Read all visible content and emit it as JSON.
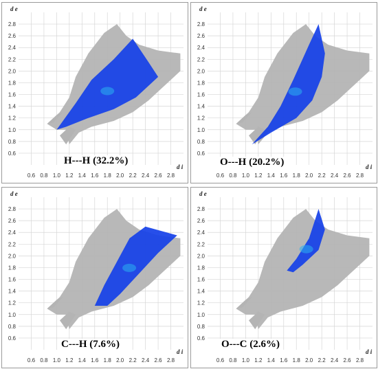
{
  "chart_data": [
    {
      "type": "scatter",
      "title": "H---H (32.2%)",
      "xlabel": "d i",
      "ylabel": "d e",
      "xlim": [
        0.4,
        3.0
      ],
      "ylim": [
        0.4,
        3.0
      ],
      "x_ticks": [
        "0.6",
        "0.8",
        "1.0",
        "1.2",
        "1.4",
        "1.6",
        "1.8",
        "2.0",
        "2.2",
        "2.4",
        "2.6",
        "2.8"
      ],
      "y_ticks": [
        "0.6",
        "0.8",
        "1.0",
        "1.2",
        "1.4",
        "1.6",
        "1.8",
        "2.0",
        "2.2",
        "2.4",
        "2.6",
        "2.8"
      ],
      "grid": true,
      "colors": {
        "background_region": "#b4b4b4",
        "highlight": "#1540e8",
        "core": "#2ab0f0"
      },
      "highlight_region": [
        [
          1.0,
          1.0
        ],
        [
          1.3,
          1.45
        ],
        [
          1.55,
          1.85
        ],
        [
          1.9,
          2.2
        ],
        [
          2.2,
          2.55
        ],
        [
          2.45,
          2.15
        ],
        [
          2.6,
          1.9
        ],
        [
          2.25,
          1.55
        ],
        [
          1.9,
          1.35
        ],
        [
          1.5,
          1.2
        ],
        [
          1.15,
          1.05
        ]
      ]
    },
    {
      "type": "scatter",
      "title": "O---H (20.2%)",
      "xlabel": "d i",
      "ylabel": "d e",
      "xlim": [
        0.4,
        3.0
      ],
      "ylim": [
        0.4,
        3.0
      ],
      "x_ticks": [
        "0.6",
        "0.8",
        "1.0",
        "1.2",
        "1.4",
        "1.6",
        "1.8",
        "2.0",
        "2.2",
        "2.4",
        "2.6",
        "2.8"
      ],
      "y_ticks": [
        "0.6",
        "0.8",
        "1.0",
        "1.2",
        "1.4",
        "1.6",
        "1.8",
        "2.0",
        "2.2",
        "2.4",
        "2.6",
        "2.8"
      ],
      "grid": true,
      "colors": {
        "background_region": "#b4b4b4",
        "highlight": "#1540e8",
        "core": "#2ab0f0"
      },
      "highlight_region": [
        [
          1.1,
          0.75
        ],
        [
          1.35,
          1.05
        ],
        [
          1.55,
          1.4
        ],
        [
          1.75,
          1.85
        ],
        [
          2.0,
          2.45
        ],
        [
          2.15,
          2.8
        ],
        [
          2.25,
          2.3
        ],
        [
          2.2,
          1.9
        ],
        [
          2.05,
          1.5
        ],
        [
          1.8,
          1.2
        ],
        [
          1.4,
          0.95
        ]
      ]
    },
    {
      "type": "scatter",
      "title": "C---H (7.6%)",
      "xlabel": "d i",
      "ylabel": "d e",
      "xlim": [
        0.4,
        3.0
      ],
      "ylim": [
        0.4,
        3.0
      ],
      "x_ticks": [
        "0.6",
        "0.8",
        "1.0",
        "1.2",
        "1.4",
        "1.6",
        "1.8",
        "2.0",
        "2.2",
        "2.4",
        "2.6",
        "2.8"
      ],
      "y_ticks": [
        "0.6",
        "0.8",
        "1.0",
        "1.2",
        "1.4",
        "1.6",
        "1.8",
        "2.0",
        "2.2",
        "2.4",
        "2.6",
        "2.8"
      ],
      "grid": true,
      "colors": {
        "background_region": "#b4b4b4",
        "highlight": "#1540e8",
        "core": "#2ab0f0"
      },
      "highlight_region": [
        [
          1.6,
          1.15
        ],
        [
          1.75,
          1.5
        ],
        [
          1.95,
          1.9
        ],
        [
          2.15,
          2.3
        ],
        [
          2.4,
          2.5
        ],
        [
          2.9,
          2.35
        ],
        [
          2.6,
          2.05
        ],
        [
          2.3,
          1.7
        ],
        [
          2.0,
          1.35
        ],
        [
          1.8,
          1.15
        ]
      ]
    },
    {
      "type": "scatter",
      "title": "O---C (2.6%)",
      "xlabel": "d i",
      "ylabel": "d e",
      "xlim": [
        0.4,
        3.0
      ],
      "ylim": [
        0.4,
        3.0
      ],
      "x_ticks": [
        "0.6",
        "0.8",
        "1.0",
        "1.2",
        "1.4",
        "1.6",
        "1.8",
        "2.0",
        "2.2",
        "2.4",
        "2.6",
        "2.8"
      ],
      "y_ticks": [
        "0.6",
        "0.8",
        "1.0",
        "1.2",
        "1.4",
        "1.6",
        "1.8",
        "2.0",
        "2.2",
        "2.4",
        "2.6",
        "2.8"
      ],
      "grid": true,
      "colors": {
        "background_region": "#b4b4b4",
        "highlight": "#1540e8",
        "core": "#2ab0f0"
      },
      "highlight_region": [
        [
          1.65,
          1.75
        ],
        [
          1.8,
          1.95
        ],
        [
          2.0,
          2.3
        ],
        [
          2.15,
          2.8
        ],
        [
          2.25,
          2.45
        ],
        [
          2.15,
          2.1
        ],
        [
          1.9,
          1.85
        ],
        [
          1.75,
          1.72
        ]
      ]
    }
  ]
}
